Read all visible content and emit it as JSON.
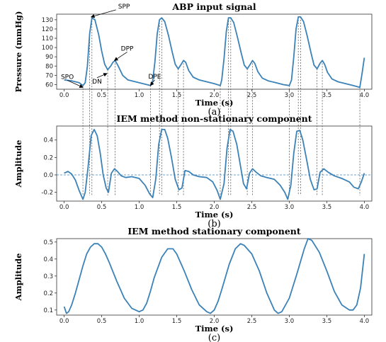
{
  "colors": {
    "line": "#3b82b8",
    "grid_dash": "#444444"
  },
  "panels": [
    {
      "caption": "(a)"
    },
    {
      "caption": "(b)"
    },
    {
      "caption": "(c)"
    }
  ],
  "chart_data": [
    {
      "type": "line",
      "title": "ABP input signal",
      "xlabel": "Time (s)",
      "ylabel": "Pressure (mmHg)",
      "xlim": [
        -0.1,
        4.1
      ],
      "ylim": [
        55,
        136
      ],
      "xticks": [
        0.0,
        0.5,
        1.0,
        1.5,
        2.0,
        2.5,
        3.0,
        3.5,
        4.0
      ],
      "xtick_labels": [
        "0.0",
        "0.5",
        "1.0",
        "1.5",
        "2.0",
        "2.5",
        "3.0",
        "3.5",
        "4.0"
      ],
      "yticks": [
        60,
        70,
        80,
        90,
        100,
        110,
        120,
        130
      ],
      "ytick_labels": [
        "60",
        "70",
        "80",
        "90",
        "100",
        "110",
        "120",
        "130"
      ],
      "annotations": [
        {
          "text": "SPP",
          "x": 0.36,
          "y": 133
        },
        {
          "text": "SPO",
          "x": 0.25,
          "y": 57
        },
        {
          "text": "DN",
          "x": 0.57,
          "y": 72
        },
        {
          "text": "DPP",
          "x": 0.67,
          "y": 86
        },
        {
          "text": "DPE",
          "x": 1.15,
          "y": 59
        }
      ],
      "series": [
        {
          "x": [
            0.0,
            0.1,
            0.2,
            0.25,
            0.28,
            0.31,
            0.34,
            0.37,
            0.41,
            0.46,
            0.5,
            0.54,
            0.58,
            0.62,
            0.65,
            0.68,
            0.72,
            0.78,
            0.85,
            0.95,
            1.05,
            1.15,
            1.18,
            1.21,
            1.24,
            1.27,
            1.3,
            1.34,
            1.39,
            1.44,
            1.48,
            1.52,
            1.56,
            1.59,
            1.62,
            1.66,
            1.72,
            1.8,
            1.9,
            2.0,
            2.08,
            2.1,
            2.13,
            2.16,
            2.19,
            2.22,
            2.26,
            2.31,
            2.36,
            2.4,
            2.44,
            2.48,
            2.51,
            2.54,
            2.58,
            2.64,
            2.72,
            2.82,
            2.92,
            3.0,
            3.03,
            3.06,
            3.09,
            3.12,
            3.15,
            3.19,
            3.24,
            3.29,
            3.33,
            3.37,
            3.41,
            3.44,
            3.47,
            3.51,
            3.57,
            3.65,
            3.75,
            3.85,
            3.94,
            3.97,
            4.0
          ],
          "y": [
            65,
            64,
            62,
            59,
            62,
            80,
            115,
            132,
            130,
            114,
            96,
            82,
            76,
            80,
            84,
            86,
            80,
            70,
            65,
            63,
            61,
            59,
            64,
            85,
            115,
            130,
            132,
            128,
            113,
            95,
            82,
            77,
            82,
            86,
            84,
            75,
            68,
            65,
            63,
            61,
            59,
            65,
            88,
            117,
            132,
            132,
            127,
            111,
            94,
            81,
            77,
            82,
            86,
            83,
            74,
            67,
            64,
            62,
            60,
            59,
            65,
            90,
            120,
            133,
            133,
            128,
            112,
            94,
            81,
            77,
            83,
            86,
            82,
            73,
            66,
            63,
            61,
            59,
            57,
            72,
            89
          ]
        }
      ]
    },
    {
      "type": "line",
      "title": "IEM method non-stationary component",
      "xlabel": "Time (s)",
      "ylabel": "Amplitude",
      "xlim": [
        -0.1,
        4.1
      ],
      "ylim": [
        -0.3,
        0.56
      ],
      "xticks": [
        0.0,
        0.5,
        1.0,
        1.5,
        2.0,
        2.5,
        3.0,
        3.5,
        4.0
      ],
      "xtick_labels": [
        "0.0",
        "0.5",
        "1.0",
        "1.5",
        "2.0",
        "2.5",
        "3.0",
        "3.5",
        "4.0"
      ],
      "yticks": [
        -0.2,
        0.0,
        0.2,
        0.4
      ],
      "ytick_labels": [
        "-0.2",
        "0.0",
        "0.2",
        "0.4"
      ],
      "zero_line": true,
      "series": [
        {
          "x": [
            0.0,
            0.05,
            0.1,
            0.15,
            0.2,
            0.25,
            0.28,
            0.32,
            0.36,
            0.4,
            0.44,
            0.48,
            0.52,
            0.56,
            0.59,
            0.63,
            0.67,
            0.71,
            0.76,
            0.82,
            0.9,
            1.0,
            1.08,
            1.14,
            1.18,
            1.22,
            1.26,
            1.3,
            1.34,
            1.38,
            1.43,
            1.48,
            1.53,
            1.57,
            1.61,
            1.66,
            1.72,
            1.8,
            1.9,
            1.98,
            2.04,
            2.08,
            2.13,
            2.17,
            2.21,
            2.25,
            2.3,
            2.35,
            2.39,
            2.43,
            2.47,
            2.51,
            2.56,
            2.62,
            2.7,
            2.8,
            2.88,
            2.94,
            2.98,
            3.02,
            3.06,
            3.1,
            3.14,
            3.18,
            3.23,
            3.28,
            3.33,
            3.37,
            3.41,
            3.46,
            3.52,
            3.6,
            3.7,
            3.8,
            3.86,
            3.92,
            3.96,
            4.0
          ],
          "y": [
            0.02,
            0.04,
            0.01,
            -0.06,
            -0.18,
            -0.28,
            -0.2,
            0.1,
            0.45,
            0.52,
            0.45,
            0.25,
            0.0,
            -0.15,
            -0.2,
            0.02,
            0.07,
            0.04,
            -0.01,
            -0.03,
            -0.02,
            -0.04,
            -0.12,
            -0.22,
            -0.26,
            -0.05,
            0.35,
            0.52,
            0.52,
            0.42,
            0.2,
            -0.05,
            -0.17,
            -0.15,
            0.05,
            0.04,
            0.0,
            -0.02,
            -0.03,
            -0.08,
            -0.18,
            -0.28,
            -0.1,
            0.3,
            0.52,
            0.5,
            0.35,
            0.1,
            -0.1,
            -0.16,
            0.02,
            0.07,
            0.03,
            -0.01,
            -0.03,
            -0.05,
            -0.12,
            -0.2,
            -0.28,
            -0.12,
            0.25,
            0.5,
            0.51,
            0.4,
            0.18,
            -0.05,
            -0.17,
            -0.16,
            0.03,
            0.07,
            0.03,
            -0.01,
            -0.04,
            -0.08,
            -0.14,
            -0.16,
            -0.08,
            0.02
          ]
        }
      ]
    },
    {
      "type": "line",
      "title": "IEM method stationary component",
      "xlabel": "Time (s)",
      "ylabel": "Amplitude",
      "xlim": [
        -0.1,
        4.1
      ],
      "ylim": [
        0.07,
        0.52
      ],
      "xticks": [
        0.0,
        0.5,
        1.0,
        1.5,
        2.0,
        2.5,
        3.0,
        3.5,
        4.0
      ],
      "xtick_labels": [
        "0.0",
        "0.5",
        "1.0",
        "1.5",
        "2.0",
        "2.5",
        "3.0",
        "3.5",
        "4.0"
      ],
      "yticks": [
        0.1,
        0.2,
        0.3,
        0.4,
        0.5
      ],
      "ytick_labels": [
        "0.1",
        "0.2",
        "0.3",
        "0.4",
        "0.5"
      ],
      "series": [
        {
          "x": [
            0.0,
            0.03,
            0.06,
            0.1,
            0.15,
            0.2,
            0.25,
            0.3,
            0.35,
            0.4,
            0.45,
            0.5,
            0.55,
            0.6,
            0.7,
            0.8,
            0.9,
            1.0,
            1.05,
            1.1,
            1.15,
            1.2,
            1.3,
            1.38,
            1.45,
            1.5,
            1.6,
            1.7,
            1.8,
            1.9,
            1.95,
            2.0,
            2.05,
            2.1,
            2.2,
            2.28,
            2.35,
            2.4,
            2.5,
            2.6,
            2.7,
            2.8,
            2.85,
            2.9,
            3.0,
            3.1,
            3.2,
            3.25,
            3.3,
            3.4,
            3.5,
            3.6,
            3.7,
            3.8,
            3.85,
            3.9,
            3.95,
            4.0
          ],
          "y": [
            0.12,
            0.08,
            0.09,
            0.13,
            0.2,
            0.28,
            0.36,
            0.43,
            0.47,
            0.49,
            0.49,
            0.47,
            0.43,
            0.38,
            0.27,
            0.17,
            0.11,
            0.09,
            0.1,
            0.14,
            0.21,
            0.29,
            0.41,
            0.46,
            0.46,
            0.43,
            0.33,
            0.22,
            0.13,
            0.09,
            0.08,
            0.1,
            0.15,
            0.22,
            0.37,
            0.46,
            0.49,
            0.48,
            0.43,
            0.33,
            0.2,
            0.1,
            0.08,
            0.09,
            0.17,
            0.31,
            0.46,
            0.52,
            0.51,
            0.44,
            0.33,
            0.21,
            0.13,
            0.1,
            0.1,
            0.13,
            0.23,
            0.43
          ]
        }
      ]
    }
  ]
}
